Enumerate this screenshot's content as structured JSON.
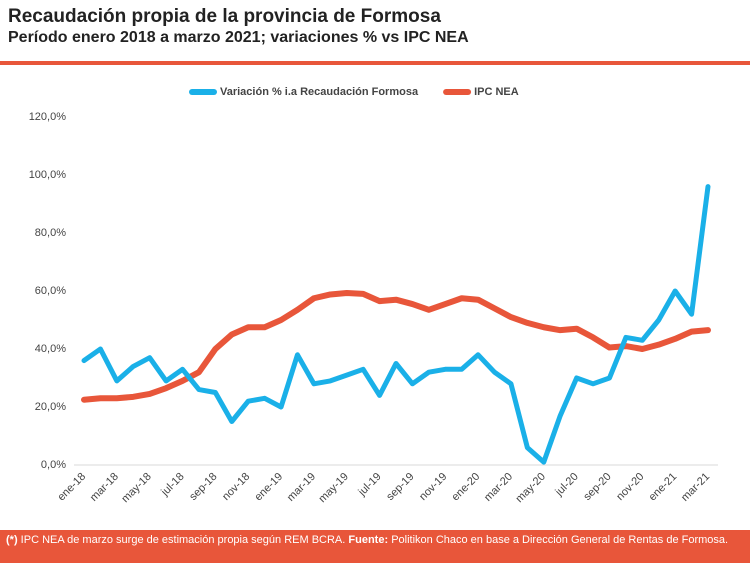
{
  "header": {
    "title": "Recaudación propia de la provincia de Formosa",
    "subtitle": "Período enero 2018 a marzo 2021; variaciones % vs IPC NEA"
  },
  "chart_data": {
    "type": "line",
    "categories": [
      "ene-18",
      null,
      "mar-18",
      null,
      "may-18",
      null,
      "jul-18",
      null,
      "sep-18",
      null,
      "nov-18",
      null,
      "ene-19",
      null,
      "mar-19",
      null,
      "may-19",
      null,
      "jul-19",
      null,
      "sep-19",
      null,
      "nov-19",
      null,
      "ene-20",
      null,
      "mar-20",
      null,
      "may-20",
      null,
      "jul-20",
      null,
      "sep-20",
      null,
      "nov-20",
      null,
      "ene-21",
      null,
      "mar-21"
    ],
    "series": [
      {
        "name": "Variación % i.a Recaudación Formosa",
        "color": "#1ab0e8",
        "values": [
          36,
          40,
          29,
          34,
          37,
          29,
          33,
          26,
          25,
          15,
          22,
          23,
          20,
          38,
          28,
          29,
          31,
          33,
          24,
          35,
          28,
          32,
          33,
          33,
          38,
          32,
          28,
          6,
          1,
          17,
          30,
          28,
          30,
          44,
          43,
          50,
          60,
          52,
          96
        ]
      },
      {
        "name": "IPC NEA",
        "color": "#e8563a",
        "values": [
          22.5,
          23,
          23,
          23.5,
          24.5,
          26.5,
          29,
          32,
          40,
          45,
          47.5,
          47.5,
          50,
          53.5,
          57.5,
          58.8,
          59.3,
          59,
          56.5,
          57,
          55.5,
          53.5,
          55.5,
          57.5,
          57,
          54,
          51,
          49,
          47.5,
          46.5,
          47,
          44,
          40.5,
          41,
          40,
          41.5,
          43.5,
          46,
          46.5
        ]
      }
    ],
    "ylim": [
      0,
      120
    ],
    "yticks": [
      {
        "value": 0,
        "label": "0,0%"
      },
      {
        "value": 20,
        "label": "20,0%"
      },
      {
        "value": 40,
        "label": "40,0%"
      },
      {
        "value": 60,
        "label": "60,0%"
      },
      {
        "value": 80,
        "label": "80,0%"
      },
      {
        "value": 100,
        "label": "100,0%"
      },
      {
        "value": 120,
        "label": "120,0%"
      }
    ],
    "legend": "top"
  },
  "footer": {
    "marker": "(*)",
    "note": "IPC NEA de marzo surge de estimación propia según REM BCRA.",
    "source_label": "Fuente:",
    "source": "Politikon Chaco en base a Dirección General de Rentas de Formosa."
  }
}
